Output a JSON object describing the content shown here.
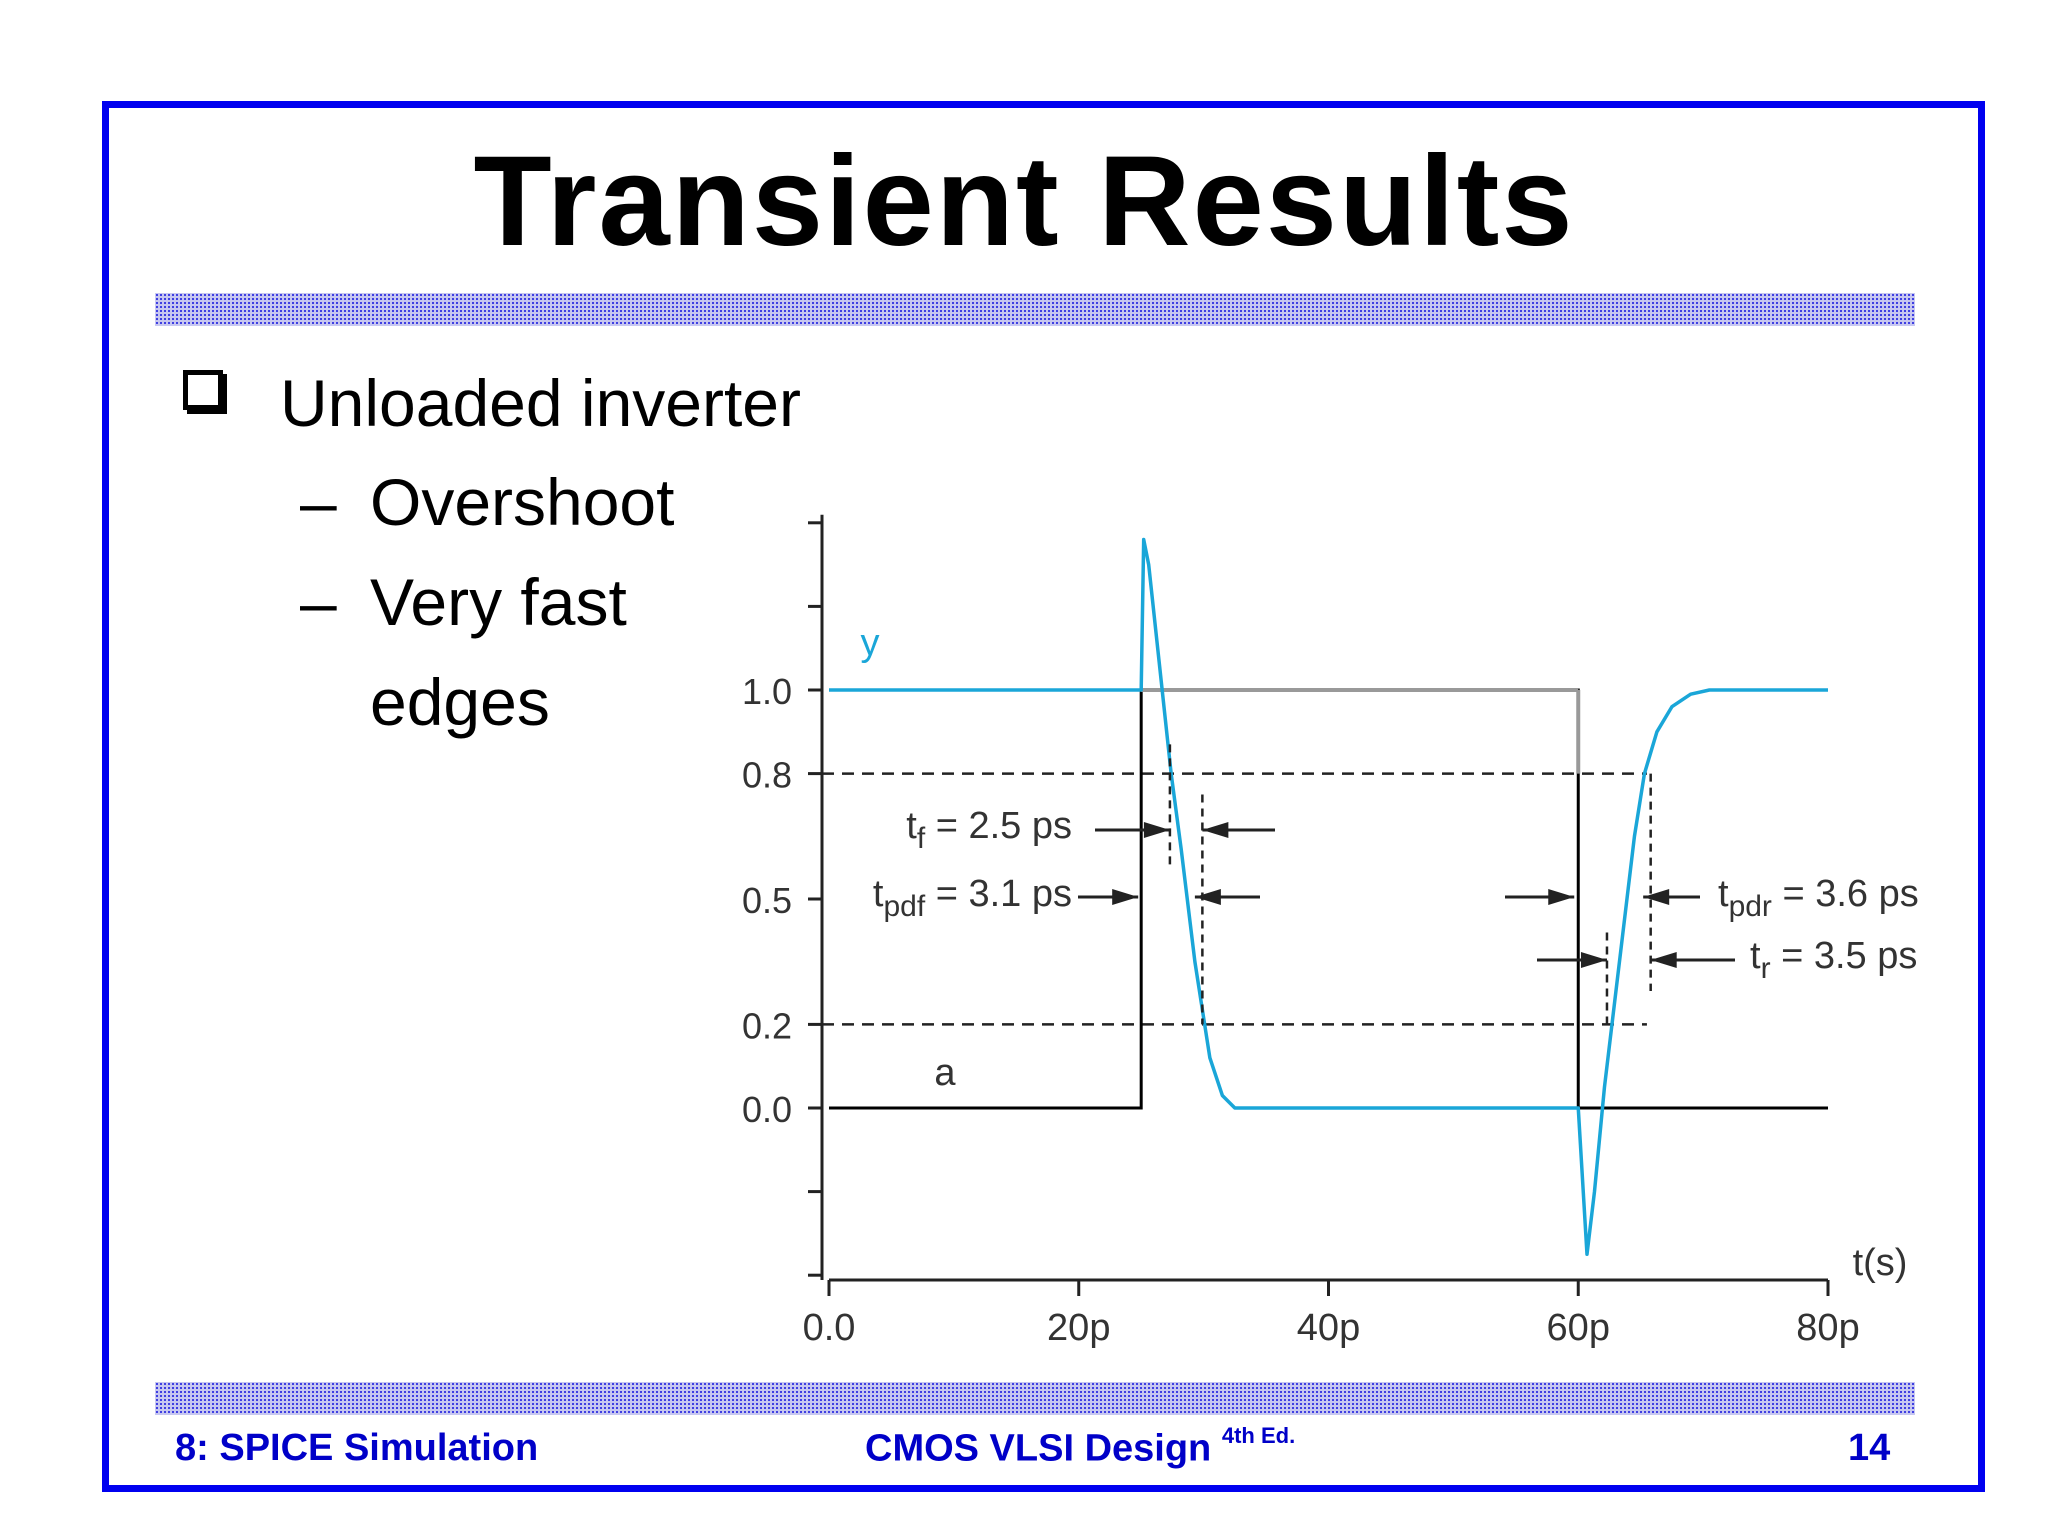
{
  "slide": {
    "title": "Transient Results",
    "bullet": "Unloaded inverter",
    "sub_bullets": [
      "Overshoot",
      "Very fast",
      "edges"
    ],
    "dash": "–",
    "footer_left": "8: SPICE Simulation",
    "footer_center": "CMOS VLSI Design",
    "footer_center_sup": "4th Ed.",
    "footer_right": "14",
    "frame_color": "#0000f0",
    "footer_color": "#0000c8"
  },
  "chart_data": {
    "type": "line",
    "xlabel": "t(s)",
    "x_ticks": [
      0,
      20,
      40,
      60,
      80
    ],
    "x_tick_labels": [
      "0.0",
      "20p",
      "40p",
      "60p",
      "80p"
    ],
    "x_unit": "ps",
    "xlim": [
      0,
      80
    ],
    "y_ticks": [
      1.0,
      0.8,
      0.5,
      0.2,
      0.0
    ],
    "y_tick_labels": [
      "1.0",
      "0.8",
      "0.5",
      "0.2",
      "0.0"
    ],
    "y_minor_ticks": [
      1.4,
      1.2,
      -0.2,
      -0.4
    ],
    "ylim": [
      -0.4,
      1.4
    ],
    "reference_lines_y": [
      0.8,
      0.2
    ],
    "series": [
      {
        "name": "a",
        "color": "#000000",
        "x": [
          0,
          25,
          25,
          60,
          60,
          80
        ],
        "y": [
          0.0,
          0.0,
          1.0,
          1.0,
          0.0,
          0.0
        ]
      },
      {
        "name": "y",
        "color": "#1aa6d8",
        "x": [
          0,
          25,
          25.2,
          25.6,
          26.5,
          27.4,
          28.2,
          29.3,
          30.5,
          31.5,
          32.5,
          40,
          60,
          60.2,
          60.7,
          61.3,
          62.1,
          63.5,
          64.5,
          65.3,
          66.3,
          67.5,
          69,
          70.5,
          72,
          80
        ],
        "y": [
          1.0,
          1.0,
          1.36,
          1.3,
          1.05,
          0.8,
          0.62,
          0.35,
          0.12,
          0.03,
          0.0,
          0.0,
          0.0,
          -0.1,
          -0.35,
          -0.2,
          0.05,
          0.4,
          0.65,
          0.8,
          0.9,
          0.96,
          0.99,
          1.0,
          1.0,
          1.0
        ]
      }
    ],
    "annotations": [
      {
        "base": "t",
        "sub": "f",
        "text": "= 2.5 ps"
      },
      {
        "base": "t",
        "sub": "pdf",
        "text": "= 3.1 ps"
      },
      {
        "base": "t",
        "sub": "pdr",
        "text": "= 3.6 ps"
      },
      {
        "base": "t",
        "sub": "r",
        "text": "= 3.5 ps"
      }
    ],
    "series_labels": [
      "y",
      "a"
    ]
  }
}
